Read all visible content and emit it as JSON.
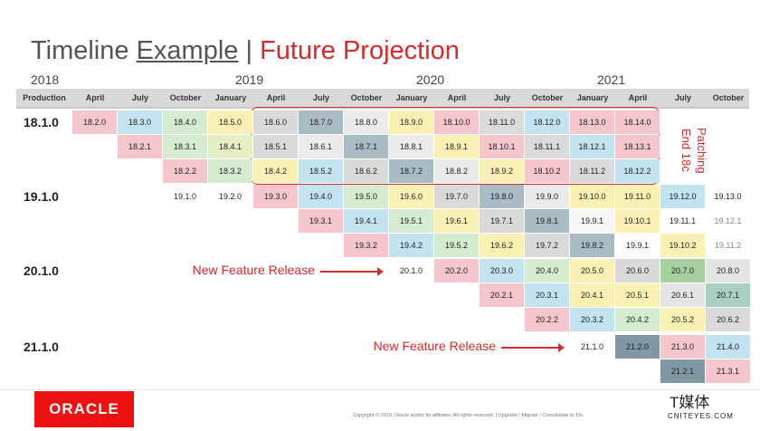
{
  "title": {
    "left": "Timeline",
    "link": "Example",
    "separator": "|",
    "right": "Future Projection"
  },
  "years": [
    {
      "label": "2018",
      "column": 0
    },
    {
      "label": "2019",
      "column": 4
    },
    {
      "label": "2020",
      "column": 8
    },
    {
      "label": "2021",
      "column": 12
    }
  ],
  "header": {
    "first": "Production",
    "months": [
      "April",
      "July",
      "October",
      "January",
      "April",
      "July",
      "October",
      "January",
      "April",
      "July",
      "October",
      "January",
      "April",
      "July",
      "October"
    ]
  },
  "rows": [
    {
      "label": "18.1.0",
      "cells": [
        {
          "text": "18.2.0",
          "color": "#f6c6cd"
        },
        {
          "text": "18.3.0",
          "color": "#c2e3ef"
        },
        {
          "text": "18.4.0",
          "color": "#d6ecd1"
        },
        {
          "text": "18.5.0",
          "color": "#faf2b5"
        },
        {
          "text": "18.6.0",
          "color": "#dadada"
        },
        {
          "text": "18.7.0",
          "color": "#a9bcc4"
        },
        {
          "text": "18.8.0",
          "color": "#ebebeb"
        },
        {
          "text": "18.9.0",
          "color": "#faf2b5"
        },
        {
          "text": "18.10.0",
          "color": "#f6c6cd"
        },
        {
          "text": "18.11.0",
          "color": "#dadada"
        },
        {
          "text": "18.12.0",
          "color": "#c2e3ef"
        },
        {
          "text": "18.13.0",
          "color": "#f6c6cd"
        },
        {
          "text": "18.14.0",
          "color": "#f6c6cd"
        },
        null,
        null
      ]
    },
    {
      "label": null,
      "cells": [
        null,
        {
          "text": "18.2.1",
          "color": "#f6c6cd"
        },
        {
          "text": "18.3.1",
          "color": "#d6ecd1"
        },
        {
          "text": "18.4.1",
          "color": "#e6efc4"
        },
        {
          "text": "18.5.1",
          "color": "#dadada"
        },
        {
          "text": "18.6.1",
          "color": "#ebebeb"
        },
        {
          "text": "18.7.1",
          "color": "#a9bcc4"
        },
        {
          "text": "18.8.1",
          "color": "#ebebeb"
        },
        {
          "text": "18.9.1",
          "color": "#faf2b5"
        },
        {
          "text": "18.10.1",
          "color": "#f6c6cd"
        },
        {
          "text": "18.11.1",
          "color": "#dadada"
        },
        {
          "text": "18.12.1",
          "color": "#c2e3ef"
        },
        {
          "text": "18.13.1",
          "color": "#f6c6cd"
        },
        null,
        null
      ]
    },
    {
      "label": null,
      "cells": [
        null,
        null,
        {
          "text": "18.2.2",
          "color": "#f6c6cd"
        },
        {
          "text": "18.3.2",
          "color": "#d6ecd1"
        },
        {
          "text": "18.4.2",
          "color": "#faf2b5"
        },
        {
          "text": "18.5.2",
          "color": "#c2e3ef"
        },
        {
          "text": "18.6.2",
          "color": "#dadada"
        },
        {
          "text": "18.7.2",
          "color": "#a9bcc4"
        },
        {
          "text": "18.8.2",
          "color": "#ebebeb"
        },
        {
          "text": "18.9.2",
          "color": "#faf2b5"
        },
        {
          "text": "18.10.2",
          "color": "#f6c6cd"
        },
        {
          "text": "18.11.2",
          "color": "#dadada"
        },
        {
          "text": "18.12.2",
          "color": "#c2e3ef"
        },
        null,
        null
      ]
    },
    {
      "label": "19.1.0",
      "cells": [
        null,
        null,
        {
          "text": "19.1.0",
          "color": "#ffffff"
        },
        {
          "text": "19.2.0",
          "color": "#ffffff"
        },
        {
          "text": "19.3.0",
          "color": "#f6c6cd"
        },
        {
          "text": "19.4.0",
          "color": "#c2e3ef"
        },
        {
          "text": "19.5.0",
          "color": "#d6ecd1"
        },
        {
          "text": "19.6.0",
          "color": "#faf2b5"
        },
        {
          "text": "19.7.0",
          "color": "#dadada"
        },
        {
          "text": "19.8.0",
          "color": "#a9bcc4"
        },
        {
          "text": "19.9.0",
          "color": "#ebebeb"
        },
        {
          "text": "19.10.0",
          "color": "#faf2b5"
        },
        {
          "text": "19.11.0",
          "color": "#faf2b5"
        },
        {
          "text": "19.12.0",
          "color": "#c2e3ef"
        },
        {
          "text": "19.13.0",
          "color": "#ffffff"
        }
      ]
    },
    {
      "label": null,
      "cells": [
        null,
        null,
        null,
        null,
        null,
        {
          "text": "19.3.1",
          "color": "#f6c6cd"
        },
        {
          "text": "19.4.1",
          "color": "#c2e3ef"
        },
        {
          "text": "19.5.1",
          "color": "#d6ecd1"
        },
        {
          "text": "19.6.1",
          "color": "#faf2b5"
        },
        {
          "text": "19.7.1",
          "color": "#dadada"
        },
        {
          "text": "19.8.1",
          "color": "#a9bcc4"
        },
        {
          "text": "19.9.1",
          "color": "#f7f7f7"
        },
        {
          "text": "19.10.1",
          "color": "#faf2b5"
        },
        {
          "text": "19.11.1",
          "color": "#ffffff"
        },
        {
          "text": "19.12.1",
          "color": "#ffffff"
        }
      ]
    },
    {
      "label": null,
      "cells": [
        null,
        null,
        null,
        null,
        null,
        null,
        {
          "text": "19.3.2",
          "color": "#f6c6cd"
        },
        {
          "text": "19.4.2",
          "color": "#c2e3ef"
        },
        {
          "text": "19.5.2",
          "color": "#d6ecd1"
        },
        {
          "text": "19.6.2",
          "color": "#faf2b5"
        },
        {
          "text": "19.7.2",
          "color": "#dadada"
        },
        {
          "text": "19.8.2",
          "color": "#a9bcc4"
        },
        {
          "text": "19.9.1",
          "color": "#ffffff"
        },
        {
          "text": "19.10.2",
          "color": "#faf2b5"
        },
        {
          "text": "19.11.2",
          "color": "#ffffff"
        }
      ]
    },
    {
      "label": "20.1.0",
      "note": "New Feature Release",
      "cells": [
        null,
        null,
        null,
        null,
        null,
        null,
        null,
        {
          "text": "20.1.0",
          "color": "#ffffff"
        },
        {
          "text": "20.2.0",
          "color": "#f6c6cd"
        },
        {
          "text": "20.3.0",
          "color": "#c2e3ef"
        },
        {
          "text": "20.4.0",
          "color": "#d6ecd1"
        },
        {
          "text": "20.5.0",
          "color": "#faf2b5"
        },
        {
          "text": "20.6.0",
          "color": "#dadada"
        },
        {
          "text": "20.7.0",
          "color": "#a8cfa0"
        },
        {
          "text": "20.8.0",
          "color": "#e4e4e4"
        }
      ]
    },
    {
      "label": null,
      "cells": [
        null,
        null,
        null,
        null,
        null,
        null,
        null,
        null,
        null,
        {
          "text": "20.2.1",
          "color": "#f6c6cd"
        },
        {
          "text": "20.3.1",
          "color": "#c2e3ef"
        },
        {
          "text": "20.4.1",
          "color": "#faf2b5"
        },
        {
          "text": "20.5.1",
          "color": "#faf2b5"
        },
        {
          "text": "20.6.1",
          "color": "#e4e4e4"
        },
        {
          "text": "20.7.1",
          "color": "#a8cfc4"
        }
      ]
    },
    {
      "label": null,
      "cells": [
        null,
        null,
        null,
        null,
        null,
        null,
        null,
        null,
        null,
        null,
        {
          "text": "20.2.2",
          "color": "#f6c6cd"
        },
        {
          "text": "20.3.2",
          "color": "#c2e3ef"
        },
        {
          "text": "20.4.2",
          "color": "#d6ecd1"
        },
        {
          "text": "20.5.2",
          "color": "#faf2b5"
        },
        {
          "text": "20.6.2",
          "color": "#dadada"
        }
      ]
    },
    {
      "label": "21.1.0",
      "note": "New Feature Release",
      "cells": [
        null,
        null,
        null,
        null,
        null,
        null,
        null,
        null,
        null,
        null,
        null,
        {
          "text": "21.1.0",
          "color": "#ffffff"
        },
        {
          "text": "21.2.0",
          "color": "#7f98a4"
        },
        {
          "text": "21.3.0",
          "color": "#f6c6cd"
        },
        {
          "text": "21.4.0",
          "color": "#c2e3ef"
        }
      ]
    },
    {
      "label": null,
      "cells": [
        null,
        null,
        null,
        null,
        null,
        null,
        null,
        null,
        null,
        null,
        null,
        null,
        null,
        {
          "text": "21.2.1",
          "color": "#7f98a4"
        },
        {
          "text": "21.3.1",
          "color": "#f6c6cd"
        }
      ]
    }
  ],
  "patching_note": "Patching End 18c",
  "footer": {
    "logo": "ORACLE",
    "copyright": "Copyright © 2019, Oracle and/or its affiliates. All rights reserved.  |  Upgrade / Migrate / Consolidate to 19c",
    "watermark": "T媒体",
    "watermark_url": "CNITEYES.COM"
  }
}
